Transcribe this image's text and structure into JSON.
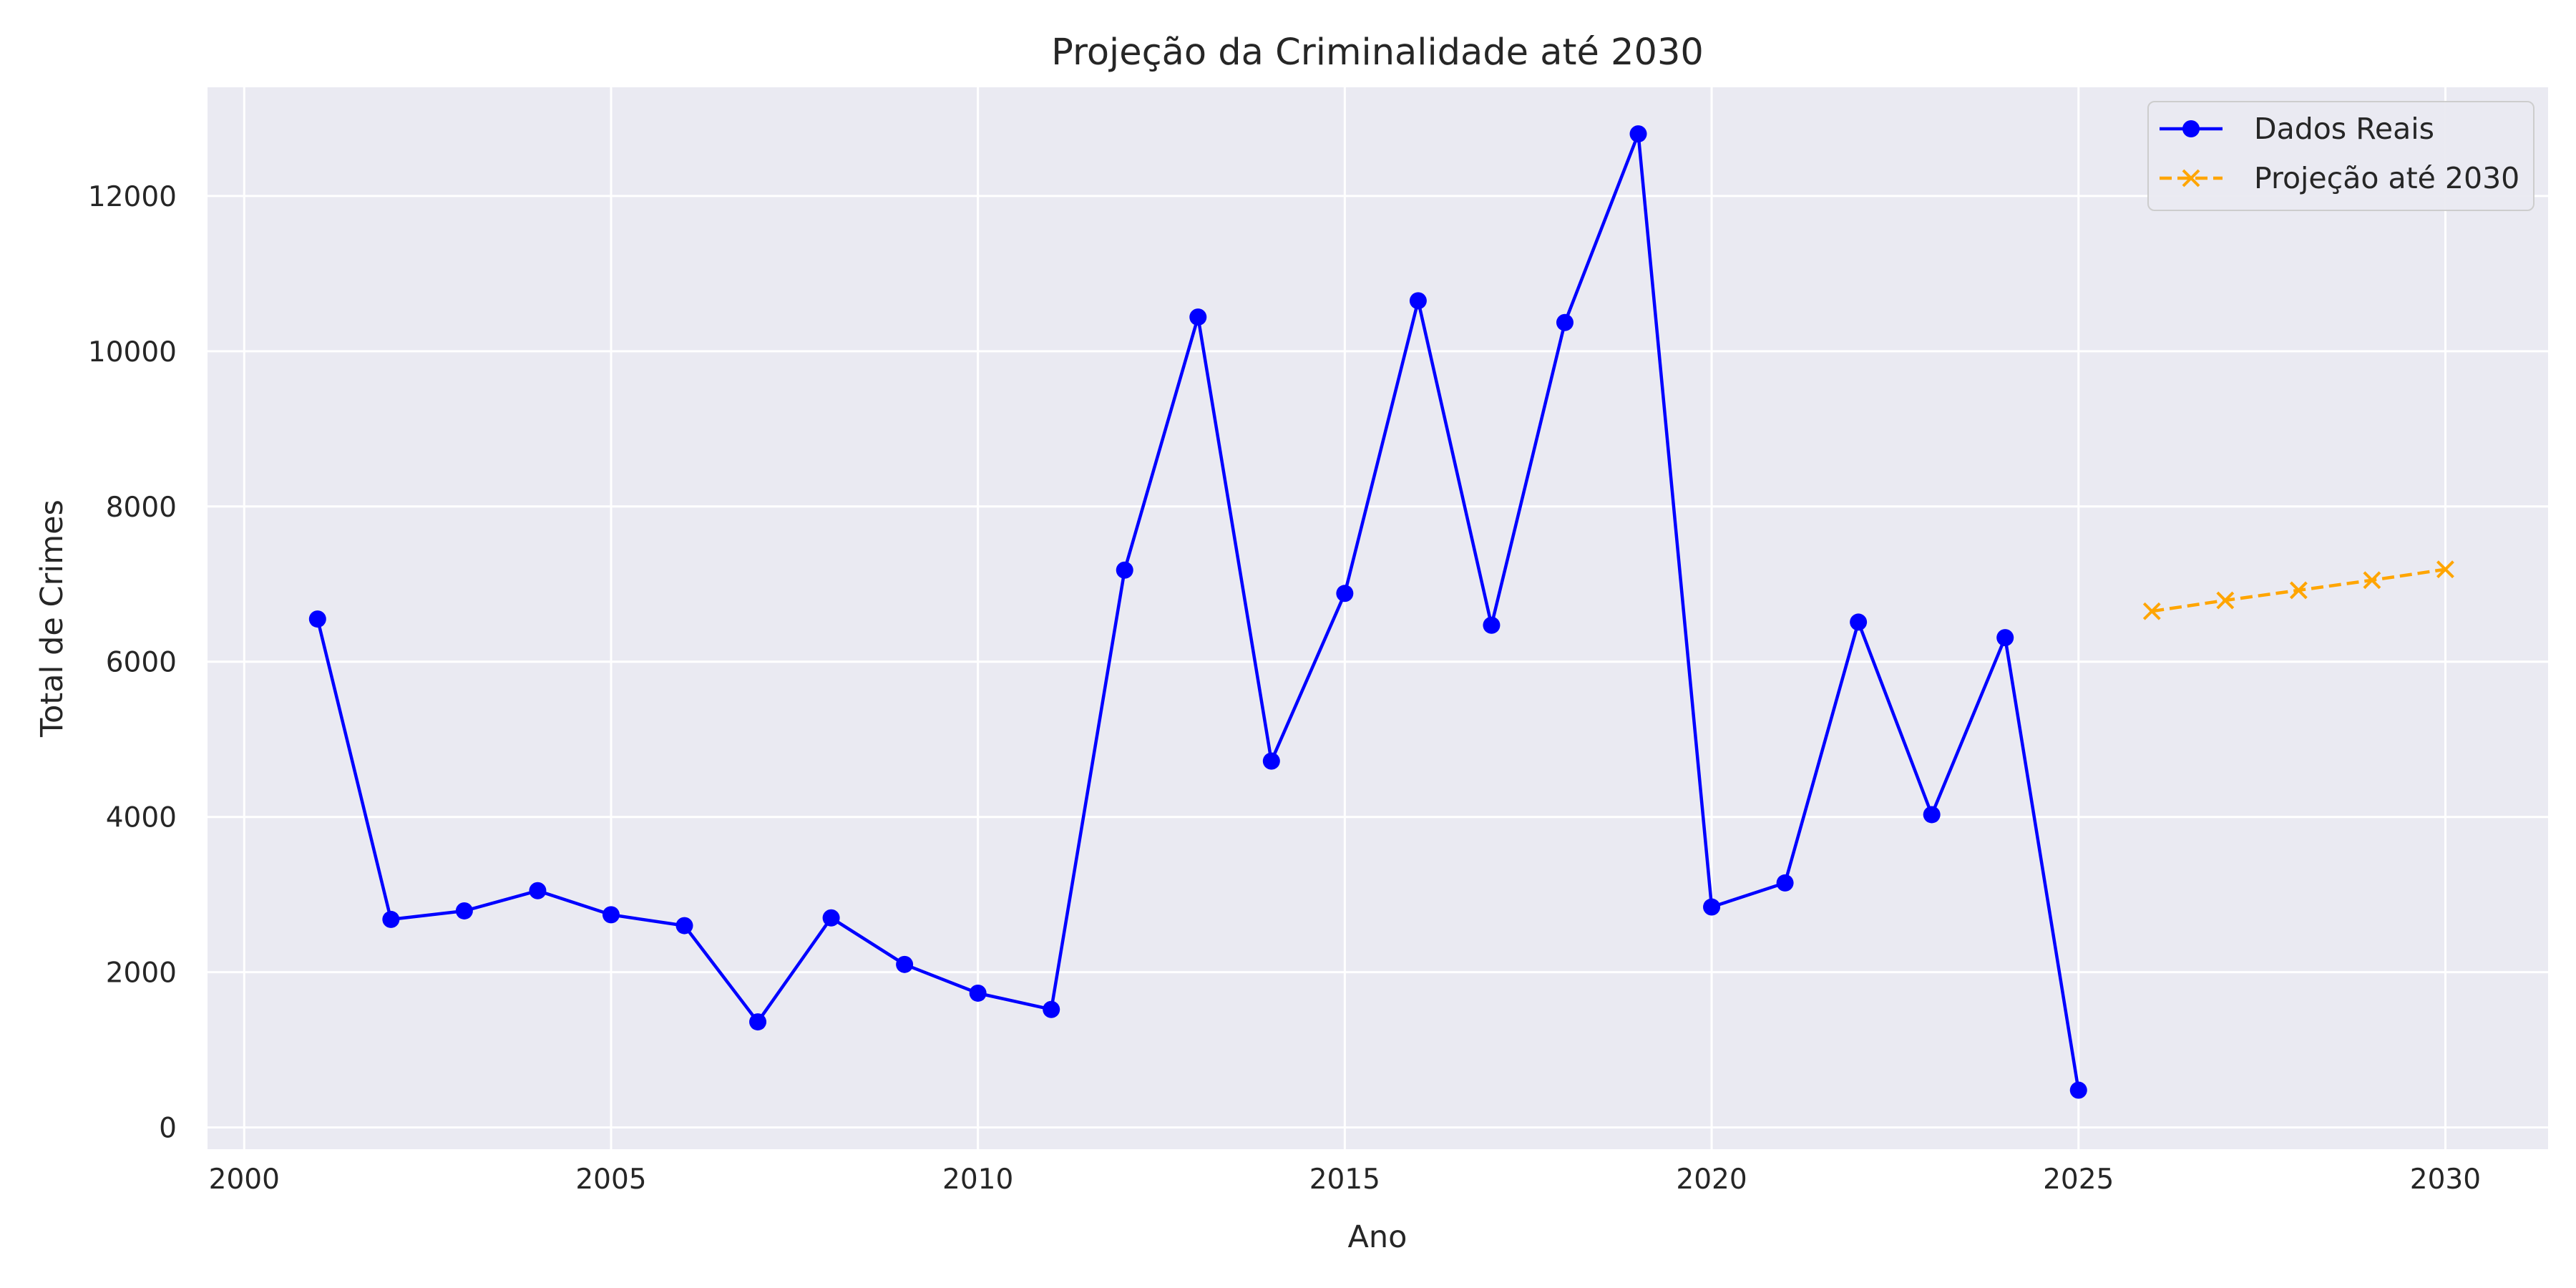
{
  "chart_data": {
    "type": "line",
    "title": "Projeção da Criminalidade até 2030",
    "xlabel": "Ano",
    "ylabel": "Total de Crimes",
    "xlim": [
      1999.5,
      2031.4
    ],
    "ylim": [
      -280,
      13400
    ],
    "xticks": [
      2000,
      2005,
      2010,
      2015,
      2020,
      2025,
      2030
    ],
    "yticks": [
      0,
      2000,
      4000,
      6000,
      8000,
      10000,
      12000
    ],
    "grid": true,
    "legend_position": "top-right",
    "background": "#eaeaf2",
    "series": [
      {
        "name": "Dados Reais",
        "color": "#0000ff",
        "marker": "circle",
        "line_style": "solid",
        "x": [
          2001,
          2002,
          2003,
          2004,
          2005,
          2006,
          2007,
          2008,
          2009,
          2010,
          2011,
          2012,
          2013,
          2014,
          2015,
          2016,
          2017,
          2018,
          2019,
          2020,
          2021,
          2022,
          2023,
          2024,
          2025
        ],
        "y": [
          6550,
          2680,
          2790,
          3050,
          2740,
          2600,
          1360,
          2700,
          2100,
          1730,
          1520,
          7180,
          10440,
          4720,
          6880,
          10650,
          6470,
          10370,
          12800,
          2840,
          3150,
          6510,
          4030,
          6310,
          480
        ]
      },
      {
        "name": "Projeção até 2030",
        "color": "#ffa500",
        "marker": "x",
        "line_style": "dashed",
        "x": [
          2026,
          2027,
          2028,
          2029,
          2030
        ],
        "y": [
          6650,
          6790,
          6920,
          7050,
          7190
        ]
      }
    ]
  }
}
